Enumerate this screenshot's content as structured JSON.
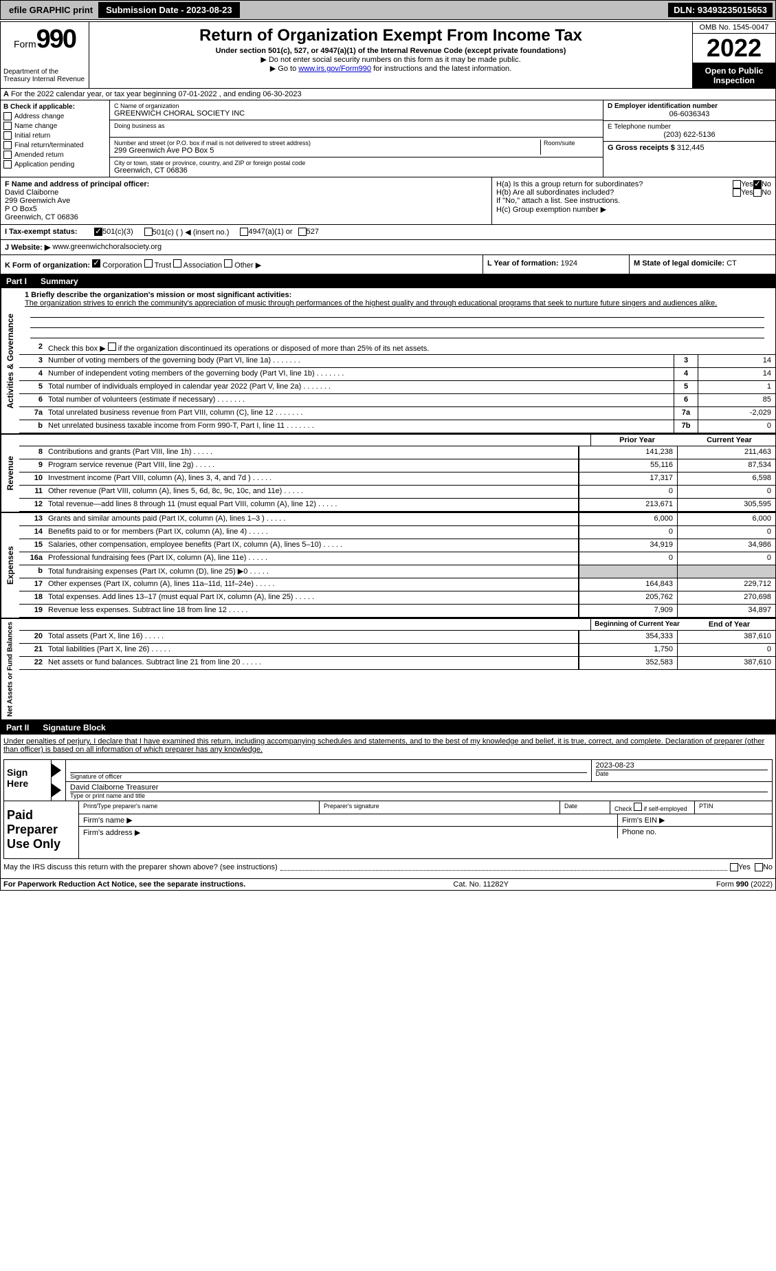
{
  "topbar": {
    "efile_label": "efile GRAPHIC print",
    "submission_label": "Submission Date - 2023-08-23",
    "dln_label": "DLN: 93493235015653"
  },
  "header": {
    "form_label": "Form",
    "form_number": "990",
    "dept_label": "Department of the Treasury\nInternal Revenue",
    "title": "Return of Organization Exempt From Income Tax",
    "subtitle": "Under section 501(c), 527, or 4947(a)(1) of the Internal Revenue Code (except private foundations)",
    "instr1": "▶ Do not enter social security numbers on this form as it may be made public.",
    "instr2_prefix": "▶ Go to ",
    "instr2_link": "www.irs.gov/Form990",
    "instr2_suffix": " for instructions and the latest information.",
    "omb": "OMB No. 1545-0047",
    "year": "2022",
    "inspection": "Open to Public Inspection"
  },
  "section_a": {
    "text": "For the 2022 calendar year, or tax year beginning 07-01-2022    , and ending 06-30-2023"
  },
  "box_b": {
    "header": "B Check if applicable:",
    "opts": [
      "Address change",
      "Name change",
      "Initial return",
      "Final return/terminated",
      "Amended return",
      "Application pending"
    ]
  },
  "box_c": {
    "name_label": "C Name of organization",
    "name": "GREENWICH CHORAL SOCIETY INC",
    "dba_label": "Doing business as",
    "dba": "",
    "street_label": "Number and street (or P.O. box if mail is not delivered to street address)",
    "street": "299 Greenwich Ave PO Box 5",
    "room_label": "Room/suite",
    "city_label": "City or town, state or province, country, and ZIP or foreign postal code",
    "city": "Greenwich, CT  06836"
  },
  "box_d": {
    "label": "D Employer identification number",
    "value": "06-6036343"
  },
  "box_e": {
    "label": "E Telephone number",
    "value": "(203) 622-5136"
  },
  "box_g": {
    "label": "G Gross receipts $",
    "value": "312,445"
  },
  "box_f": {
    "label": "F  Name and address of principal officer:",
    "name": "David Claiborne",
    "addr1": "299 Greenwich Ave",
    "addr2": "P O Box5",
    "addr3": "Greenwich, CT  06836"
  },
  "box_h": {
    "ha_label": "H(a)  Is this a group return for subordinates?",
    "hb_label": "H(b)  Are all subordinates included?",
    "h_note": "If \"No,\" attach a list. See instructions.",
    "hc_label": "H(c)  Group exemption number ▶"
  },
  "box_i": {
    "label": "I   Tax-exempt status:",
    "opt1": "501(c)(3)",
    "opt2": "501(c) (  ) ◀ (insert no.)",
    "opt3": "4947(a)(1) or",
    "opt4": "527"
  },
  "box_j": {
    "label": "J   Website: ▶",
    "value": "www.greenwichchoralsociety.org"
  },
  "box_k": {
    "label": "K Form of organization:",
    "opts": [
      "Corporation",
      "Trust",
      "Association",
      "Other ▶"
    ]
  },
  "box_l": {
    "label": "L Year of formation:",
    "value": "1924"
  },
  "box_m": {
    "label": "M State of legal domicile:",
    "value": "CT"
  },
  "part1": {
    "label": "Part I",
    "title": "Summary"
  },
  "activities": {
    "vlabel": "Activities & Governance",
    "line1_label": "1   Briefly describe the organization's mission or most significant activities:",
    "line1_text": "The organization strives to enrich the community's appreciation of music through performances of the highest quality and through educational programs that seek to nurture future singers and audiences alike.",
    "line2_label": "Check this box ▶",
    "line2_suffix": "if the organization discontinued its operations or disposed of more than 25% of its net assets.",
    "rows": [
      {
        "n": "3",
        "desc": "Number of voting members of the governing body (Part VI, line 1a)",
        "vn": "3",
        "v": "14"
      },
      {
        "n": "4",
        "desc": "Number of independent voting members of the governing body (Part VI, line 1b)",
        "vn": "4",
        "v": "14"
      },
      {
        "n": "5",
        "desc": "Total number of individuals employed in calendar year 2022 (Part V, line 2a)",
        "vn": "5",
        "v": "1"
      },
      {
        "n": "6",
        "desc": "Total number of volunteers (estimate if necessary)",
        "vn": "6",
        "v": "85"
      },
      {
        "n": "7a",
        "desc": "Total unrelated business revenue from Part VIII, column (C), line 12",
        "vn": "7a",
        "v": "-2,029"
      },
      {
        "n": "b",
        "desc": "Net unrelated business taxable income from Form 990-T, Part I, line 11",
        "vn": "7b",
        "v": "0"
      }
    ]
  },
  "revenue": {
    "vlabel": "Revenue",
    "h_prior": "Prior Year",
    "h_curr": "Current Year",
    "rows": [
      {
        "n": "8",
        "desc": "Contributions and grants (Part VIII, line 1h)",
        "p": "141,238",
        "c": "211,463"
      },
      {
        "n": "9",
        "desc": "Program service revenue (Part VIII, line 2g)",
        "p": "55,116",
        "c": "87,534"
      },
      {
        "n": "10",
        "desc": "Investment income (Part VIII, column (A), lines 3, 4, and 7d )",
        "p": "17,317",
        "c": "6,598"
      },
      {
        "n": "11",
        "desc": "Other revenue (Part VIII, column (A), lines 5, 6d, 8c, 9c, 10c, and 11e)",
        "p": "0",
        "c": "0"
      },
      {
        "n": "12",
        "desc": "Total revenue—add lines 8 through 11 (must equal Part VIII, column (A), line 12)",
        "p": "213,671",
        "c": "305,595"
      }
    ]
  },
  "expenses": {
    "vlabel": "Expenses",
    "rows": [
      {
        "n": "13",
        "desc": "Grants and similar amounts paid (Part IX, column (A), lines 1–3 )",
        "p": "6,000",
        "c": "6,000"
      },
      {
        "n": "14",
        "desc": "Benefits paid to or for members (Part IX, column (A), line 4)",
        "p": "0",
        "c": "0"
      },
      {
        "n": "15",
        "desc": "Salaries, other compensation, employee benefits (Part IX, column (A), lines 5–10)",
        "p": "34,919",
        "c": "34,986"
      },
      {
        "n": "16a",
        "desc": "Professional fundraising fees (Part IX, column (A), line 11e)",
        "p": "0",
        "c": "0"
      },
      {
        "n": "b",
        "desc": "Total fundraising expenses (Part IX, column (D), line 25) ▶0",
        "p": "",
        "c": ""
      },
      {
        "n": "17",
        "desc": "Other expenses (Part IX, column (A), lines 11a–11d, 11f–24e)",
        "p": "164,843",
        "c": "229,712"
      },
      {
        "n": "18",
        "desc": "Total expenses. Add lines 13–17 (must equal Part IX, column (A), line 25)",
        "p": "205,762",
        "c": "270,698"
      },
      {
        "n": "19",
        "desc": "Revenue less expenses. Subtract line 18 from line 12",
        "p": "7,909",
        "c": "34,897"
      }
    ]
  },
  "netassets": {
    "vlabel": "Net Assets or Fund Balances",
    "h_prior": "Beginning of Current Year",
    "h_curr": "End of Year",
    "rows": [
      {
        "n": "20",
        "desc": "Total assets (Part X, line 16)",
        "p": "354,333",
        "c": "387,610"
      },
      {
        "n": "21",
        "desc": "Total liabilities (Part X, line 26)",
        "p": "1,750",
        "c": "0"
      },
      {
        "n": "22",
        "desc": "Net assets or fund balances. Subtract line 21 from line 20",
        "p": "352,583",
        "c": "387,610"
      }
    ]
  },
  "part2": {
    "label": "Part II",
    "title": "Signature Block"
  },
  "sig": {
    "penalty": "Under penalties of perjury, I declare that I have examined this return, including accompanying schedules and statements, and to the best of my knowledge and belief, it is true, correct, and complete. Declaration of preparer (other than officer) is based on all information of which preparer has any knowledge.",
    "sign_here": "Sign Here",
    "sig_officer_label": "Signature of officer",
    "date_label": "Date",
    "date_val": "2023-08-23",
    "officer_name": "David Claiborne  Treasurer",
    "type_label": "Type or print name and title",
    "paid_label": "Paid Preparer Use Only",
    "prep_name_label": "Print/Type preparer's name",
    "prep_sig_label": "Preparer's signature",
    "prep_date_label": "Date",
    "prep_check_label": "Check",
    "prep_self_label": "if self-employed",
    "ptin_label": "PTIN",
    "firm_name_label": "Firm's name  ▶",
    "firm_ein_label": "Firm's EIN ▶",
    "firm_addr_label": "Firm's address ▶",
    "phone_label": "Phone no."
  },
  "bottom": {
    "discuss": "May the IRS discuss this return with the preparer shown above? (see instructions)",
    "paperwork": "For Paperwork Reduction Act Notice, see the separate instructions.",
    "catno": "Cat. No. 11282Y",
    "formfoot": "Form 990 (2022)"
  }
}
